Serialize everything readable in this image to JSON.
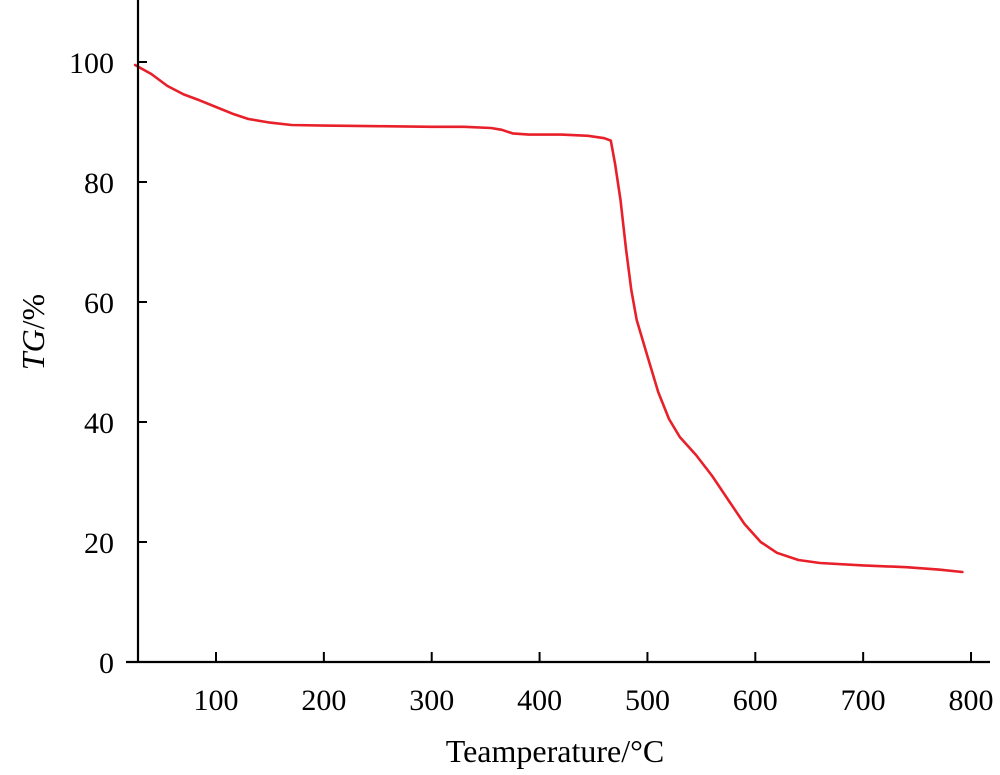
{
  "chart_data": {
    "type": "line",
    "title": "",
    "xlabel": "Teamperature/°C",
    "ylabel_italic": "TG",
    "ylabel_unit": "/%",
    "xlim": [
      25,
      810
    ],
    "ylim": [
      0,
      110
    ],
    "xticks": [
      100,
      200,
      300,
      400,
      500,
      600,
      700,
      800
    ],
    "yticks": [
      0,
      20,
      40,
      60,
      80,
      100
    ],
    "grid": false,
    "legend": "none",
    "series": [
      {
        "color": "#e8202a",
        "points": [
          [
            25,
            99.5
          ],
          [
            40,
            98.0
          ],
          [
            55,
            96.0
          ],
          [
            70,
            94.6
          ],
          [
            85,
            93.6
          ],
          [
            100,
            92.5
          ],
          [
            115,
            91.4
          ],
          [
            130,
            90.5
          ],
          [
            150,
            89.9
          ],
          [
            170,
            89.5
          ],
          [
            200,
            89.4
          ],
          [
            250,
            89.3
          ],
          [
            300,
            89.2
          ],
          [
            330,
            89.2
          ],
          [
            355,
            89.0
          ],
          [
            365,
            88.7
          ],
          [
            375,
            88.1
          ],
          [
            390,
            87.9
          ],
          [
            420,
            87.9
          ],
          [
            445,
            87.7
          ],
          [
            460,
            87.3
          ],
          [
            466,
            86.9
          ],
          [
            470,
            83.0
          ],
          [
            475,
            77.0
          ],
          [
            480,
            69.0
          ],
          [
            485,
            62.0
          ],
          [
            490,
            57.0
          ],
          [
            500,
            51.0
          ],
          [
            510,
            45.0
          ],
          [
            520,
            40.5
          ],
          [
            530,
            37.5
          ],
          [
            545,
            34.5
          ],
          [
            560,
            31.0
          ],
          [
            575,
            27.0
          ],
          [
            590,
            23.0
          ],
          [
            605,
            20.0
          ],
          [
            620,
            18.2
          ],
          [
            640,
            17.0
          ],
          [
            660,
            16.5
          ],
          [
            700,
            16.1
          ],
          [
            740,
            15.8
          ],
          [
            770,
            15.4
          ],
          [
            792,
            15.0
          ]
        ]
      }
    ]
  }
}
